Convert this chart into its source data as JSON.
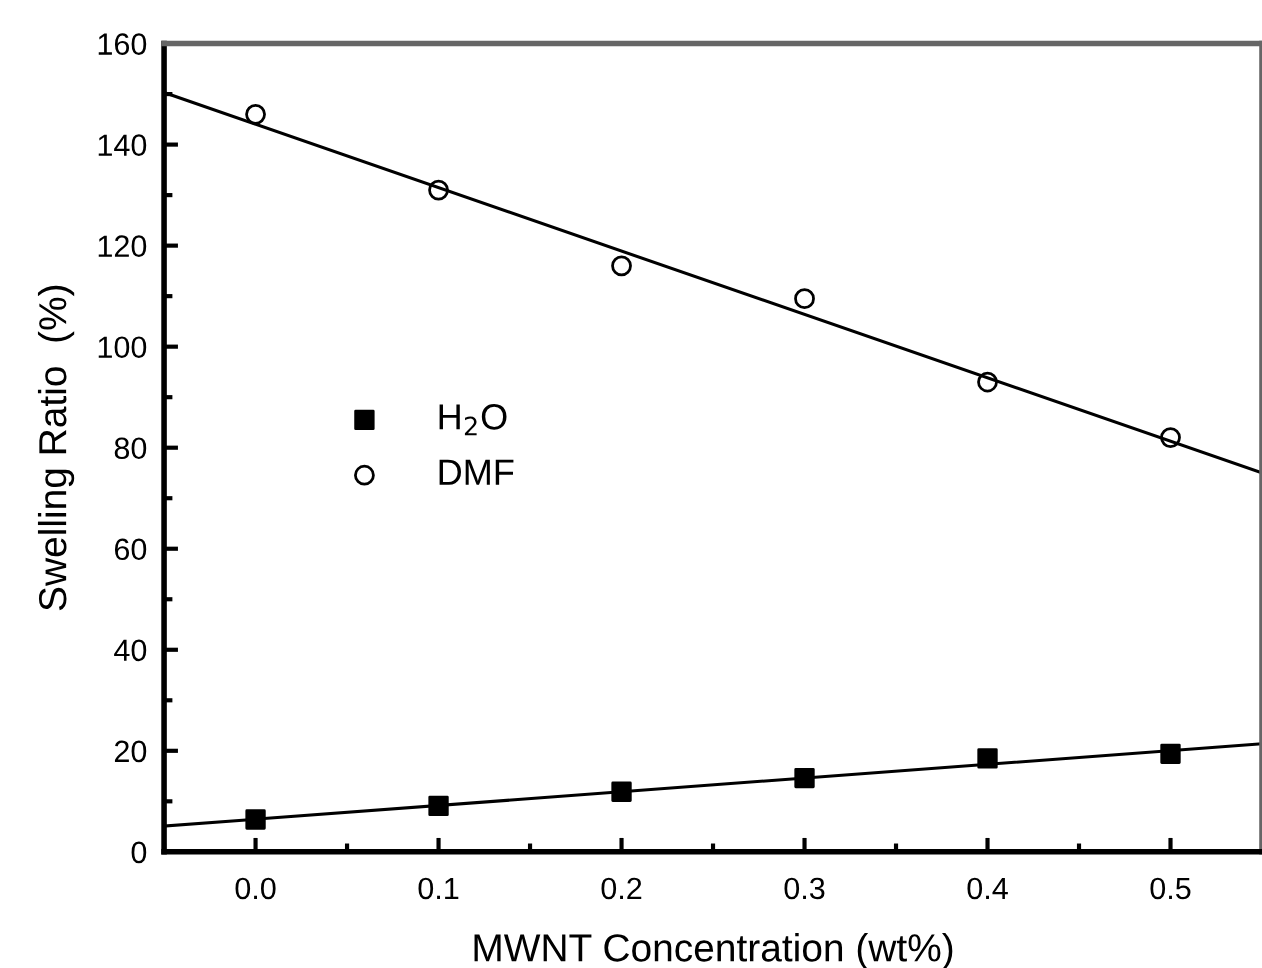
{
  "chart_data": {
    "type": "scatter",
    "xlabel": "MWNT Concentration (wt%)",
    "ylabel": "Swelling Ratio  (%)",
    "xlim": [
      -0.05,
      0.55
    ],
    "ylim": [
      0,
      160
    ],
    "xticks": [
      {
        "value": 0,
        "label": "0.0"
      },
      0.1,
      0.2,
      0.3,
      0.4,
      0.5
    ],
    "yticks": [
      0,
      20,
      40,
      60,
      80,
      100,
      120,
      140,
      160
    ],
    "grid": false,
    "legend": "left",
    "series": [
      {
        "name": "H$_{2}$O",
        "marker": "square",
        "color": "#000000",
        "x": [
          0,
          0.1,
          0.2,
          0.3,
          0.4,
          0.5
        ],
        "values": [
          6.4,
          9.1,
          11.9,
          14.6,
          18.5,
          19.4
        ]
      },
      {
        "name": "DMF",
        "marker": "circle",
        "color": "#000000",
        "x": [
          0,
          0.1,
          0.2,
          0.3,
          0.4,
          0.5
        ],
        "values": [
          146,
          131,
          116,
          109.5,
          93,
          82
        ]
      },
      {
        "type": "line",
        "color": "#000000",
        "x": [
          -0.05,
          0.55
        ],
        "values": [
          5.1,
          21.4
        ]
      },
      {
        "type": "line",
        "color": "#000000",
        "x": [
          -0.05,
          0.55
        ],
        "values": [
          150.3,
          75
        ]
      }
    ]
  }
}
